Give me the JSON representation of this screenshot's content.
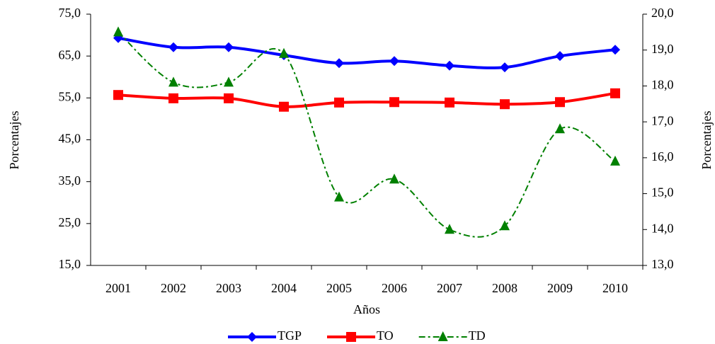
{
  "chart_data": {
    "type": "line",
    "xlabel": "Años",
    "ylabel": "Porcentajes",
    "y2label": "Porcentajes",
    "categories": [
      "2001",
      "2002",
      "2003",
      "2004",
      "2005",
      "2006",
      "2007",
      "2008",
      "2009",
      "2010"
    ],
    "series": [
      {
        "name": "TGP",
        "color": "#0000ff",
        "marker": "diamond",
        "dash": "solid",
        "values": [
          69.3,
          67.1,
          67.1,
          65.2,
          63.3,
          63.8,
          62.7,
          62.3,
          65.0,
          66.5
        ]
      },
      {
        "name": "TO",
        "color": "#ff0000",
        "marker": "square",
        "dash": "solid",
        "values": [
          55.7,
          54.9,
          54.9,
          52.9,
          53.9,
          54.0,
          53.9,
          53.5,
          54.0,
          56.1
        ]
      },
      {
        "name": "TD",
        "color": "#008000",
        "marker": "triangle",
        "dash": "dashdot",
        "axis": "y2",
        "values": [
          19.5,
          18.1,
          18.1,
          18.9,
          14.9,
          15.4,
          14.0,
          14.1,
          16.8,
          15.9
        ]
      }
    ],
    "ylim": [
      15,
      75
    ],
    "yticks": [
      {
        "value": 15,
        "label": "15,0"
      },
      {
        "value": 25,
        "label": "25,0"
      },
      {
        "value": 35,
        "label": "35,0"
      },
      {
        "value": 45,
        "label": "45,0"
      },
      {
        "value": 55,
        "label": "55,0"
      },
      {
        "value": 65,
        "label": "65,0"
      },
      {
        "value": 75,
        "label": "75,0"
      }
    ],
    "y2lim": [
      13,
      20
    ],
    "y2ticks": [
      {
        "value": 13,
        "label": "13,0"
      },
      {
        "value": 14,
        "label": "14,0"
      },
      {
        "value": 15,
        "label": "15,0"
      },
      {
        "value": 16,
        "label": "16,0"
      },
      {
        "value": 17,
        "label": "17,0"
      },
      {
        "value": 18,
        "label": "18,0"
      },
      {
        "value": 19,
        "label": "19,0"
      },
      {
        "value": 20,
        "label": "20,0"
      }
    ],
    "grid": false,
    "smooth": true,
    "legend": "bottom"
  }
}
